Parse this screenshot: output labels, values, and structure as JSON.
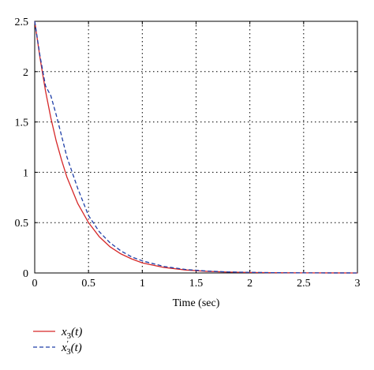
{
  "chart_data": {
    "type": "line",
    "title": "",
    "xlabel": "Time (sec)",
    "ylabel": "",
    "xlim": [
      0,
      3
    ],
    "ylim": [
      0,
      2.5
    ],
    "xticks": [
      "0",
      "0.5",
      "1",
      "1.5",
      "2",
      "2.5",
      "3"
    ],
    "yticks": [
      "0",
      "0.5",
      "1",
      "1.5",
      "2",
      "2.5"
    ],
    "grid": true,
    "legend_position": "bottom-left",
    "series": [
      {
        "name": "x3(t)",
        "legend_base": "x",
        "legend_sub": "3",
        "legend_prime": "",
        "legend_arg": "(t)",
        "color": "#d62728",
        "style": "solid",
        "x": [
          0,
          0.05,
          0.1,
          0.15,
          0.2,
          0.25,
          0.3,
          0.4,
          0.5,
          0.6,
          0.7,
          0.8,
          0.9,
          1.0,
          1.2,
          1.4,
          1.6,
          1.8,
          2.0,
          2.2,
          2.5,
          2.8,
          3.0
        ],
        "y": [
          2.5,
          2.13,
          1.81,
          1.54,
          1.31,
          1.12,
          0.95,
          0.69,
          0.5,
          0.36,
          0.26,
          0.19,
          0.14,
          0.1,
          0.055,
          0.03,
          0.016,
          0.009,
          0.005,
          0.003,
          0.001,
          0.0005,
          0.0002
        ]
      },
      {
        "name": "x3'(t)",
        "legend_base": "x",
        "legend_sub": "3",
        "legend_prime": "′",
        "legend_arg": "(t)",
        "color": "#1f3fa8",
        "style": "dashed",
        "x": [
          0,
          0.05,
          0.1,
          0.15,
          0.2,
          0.25,
          0.3,
          0.4,
          0.5,
          0.6,
          0.7,
          0.8,
          0.9,
          1.0,
          1.2,
          1.4,
          1.6,
          1.8,
          2.0,
          2.2,
          2.5,
          2.8,
          3.0
        ],
        "y": [
          2.5,
          2.15,
          1.86,
          1.76,
          1.57,
          1.36,
          1.15,
          0.84,
          0.57,
          0.41,
          0.3,
          0.22,
          0.16,
          0.12,
          0.065,
          0.035,
          0.019,
          0.01,
          0.006,
          0.003,
          0.001,
          0.0005,
          0.0002
        ]
      }
    ]
  }
}
